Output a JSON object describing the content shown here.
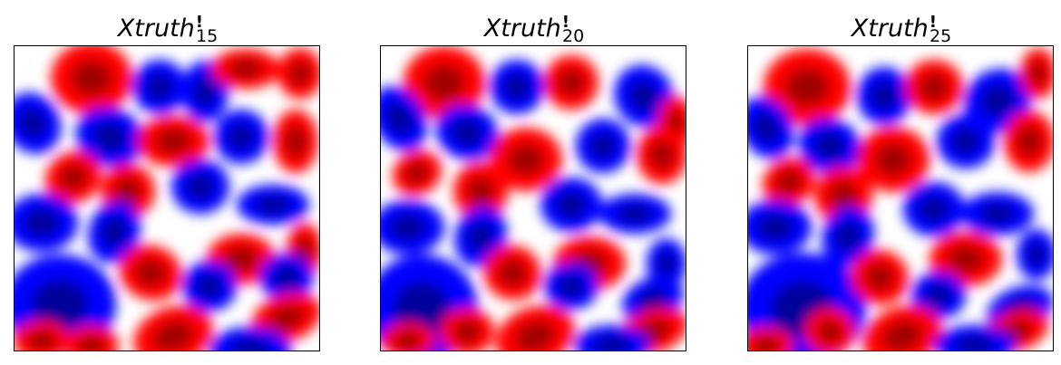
{
  "panels": [
    {
      "title_main": "Xtruth",
      "title_mark": "!",
      "title_sub": "15"
    },
    {
      "title_main": "Xtruth",
      "title_mark": "!",
      "title_sub": "20"
    },
    {
      "title_main": "Xtruth",
      "title_mark": "!",
      "title_sub": "25"
    }
  ],
  "colormap": {
    "negative": "#0000ff",
    "zero": "#ffffff",
    "positive": "#ff0000"
  }
}
